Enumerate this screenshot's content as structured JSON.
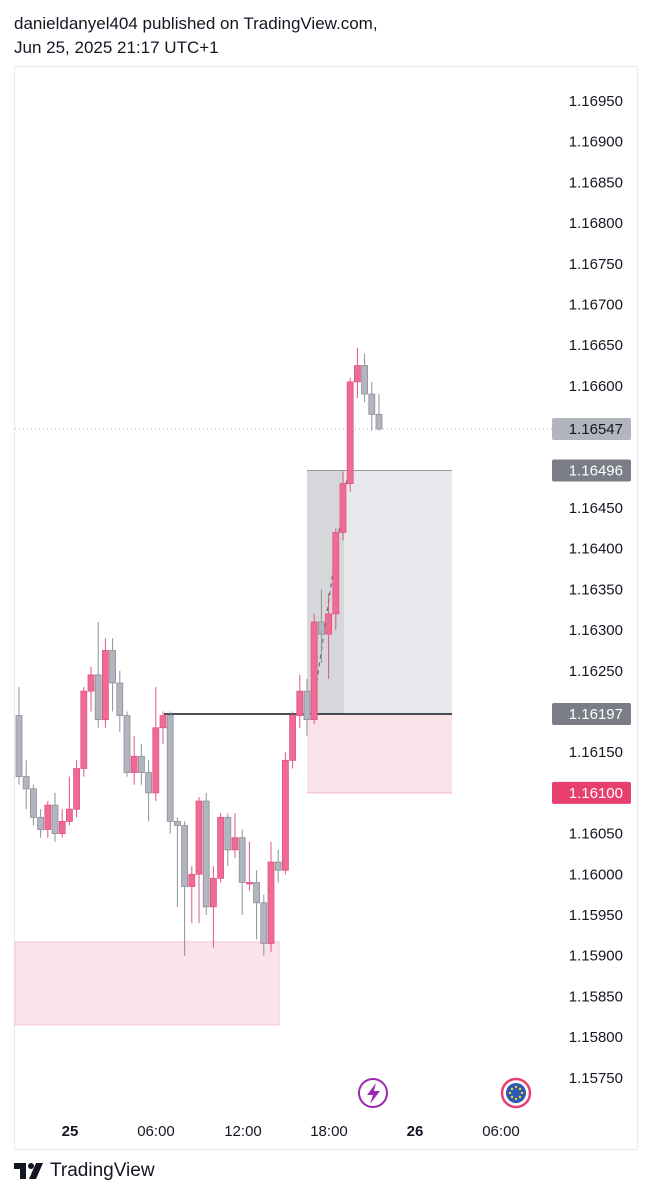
{
  "header": {
    "line1": "danieldanyel404 published on TradingView.com,",
    "line2": "Jun 25, 2025 21:17 UTC+1"
  },
  "footer": {
    "brand": "TradingView"
  },
  "colors": {
    "up_candle": "#f06b94",
    "down_candle": "#b2b5be",
    "zone_pink": "#fbe3ea",
    "zone_gray": "#e8e9ec",
    "zone_gray_dark": "#d6d7db",
    "tag_current": "#b2b5be",
    "tag_dark": "#7b7d86",
    "tag_red": "#e93f6f"
  },
  "chart_data": {
    "type": "candlestick",
    "y_ticks": [
      "1.16950",
      "1.16900",
      "1.16850",
      "1.16800",
      "1.16750",
      "1.16700",
      "1.16650",
      "1.16600",
      "1.16550",
      "1.16500",
      "1.16450",
      "1.16400",
      "1.16350",
      "1.16300",
      "1.16250",
      "1.16200",
      "1.16150",
      "1.16100",
      "1.16050",
      "1.16000",
      "1.15950",
      "1.15900",
      "1.15850",
      "1.15800",
      "1.15750"
    ],
    "visible_y_ticks": [
      "1.16950",
      "1.16900",
      "1.16850",
      "1.16800",
      "1.16750",
      "1.16700",
      "1.16650",
      "1.16600",
      "1.16450",
      "1.16400",
      "1.16350",
      "1.16300",
      "1.16250",
      "1.16150",
      "1.16050",
      "1.16000",
      "1.15950",
      "1.15900",
      "1.15850",
      "1.15800",
      "1.15750"
    ],
    "x_ticks": [
      {
        "label": "25",
        "bold": true
      },
      {
        "label": "06:00",
        "bold": false
      },
      {
        "label": "12:00",
        "bold": false
      },
      {
        "label": "18:00",
        "bold": false
      },
      {
        "label": "26",
        "bold": true
      },
      {
        "label": "06:00",
        "bold": false
      }
    ],
    "price_tags": [
      {
        "label": "1.16547",
        "style": "current"
      },
      {
        "label": "1.16496",
        "style": "dark"
      },
      {
        "label": "1.16197",
        "style": "dark"
      },
      {
        "label": "1.16100",
        "style": "red"
      }
    ],
    "candles": [
      {
        "o": 1.16195,
        "h": 1.1623,
        "l": 1.1611,
        "c": 1.1612
      },
      {
        "o": 1.1612,
        "h": 1.1614,
        "l": 1.1608,
        "c": 1.16105
      },
      {
        "o": 1.16105,
        "h": 1.1611,
        "l": 1.1606,
        "c": 1.1607
      },
      {
        "o": 1.1607,
        "h": 1.1608,
        "l": 1.16045,
        "c": 1.16055
      },
      {
        "o": 1.16055,
        "h": 1.1609,
        "l": 1.16045,
        "c": 1.16085
      },
      {
        "o": 1.16085,
        "h": 1.161,
        "l": 1.1604,
        "c": 1.1605
      },
      {
        "o": 1.1605,
        "h": 1.1608,
        "l": 1.16045,
        "c": 1.16065
      },
      {
        "o": 1.16065,
        "h": 1.1612,
        "l": 1.1606,
        "c": 1.1608
      },
      {
        "o": 1.1608,
        "h": 1.1614,
        "l": 1.1607,
        "c": 1.1613
      },
      {
        "o": 1.1613,
        "h": 1.1623,
        "l": 1.1612,
        "c": 1.16225
      },
      {
        "o": 1.16225,
        "h": 1.16255,
        "l": 1.162,
        "c": 1.16245
      },
      {
        "o": 1.16245,
        "h": 1.1631,
        "l": 1.1618,
        "c": 1.1619
      },
      {
        "o": 1.1619,
        "h": 1.1629,
        "l": 1.1618,
        "c": 1.16275
      },
      {
        "o": 1.16275,
        "h": 1.1629,
        "l": 1.162,
        "c": 1.16235
      },
      {
        "o": 1.16235,
        "h": 1.1625,
        "l": 1.16175,
        "c": 1.16195
      },
      {
        "o": 1.16195,
        "h": 1.162,
        "l": 1.1612,
        "c": 1.16125
      },
      {
        "o": 1.16125,
        "h": 1.1617,
        "l": 1.1611,
        "c": 1.16145
      },
      {
        "o": 1.16145,
        "h": 1.1616,
        "l": 1.1611,
        "c": 1.16125
      },
      {
        "o": 1.16125,
        "h": 1.1614,
        "l": 1.16065,
        "c": 1.161
      },
      {
        "o": 1.161,
        "h": 1.1623,
        "l": 1.1609,
        "c": 1.1618
      },
      {
        "o": 1.1618,
        "h": 1.162,
        "l": 1.1616,
        "c": 1.16195
      },
      {
        "o": 1.16195,
        "h": 1.162,
        "l": 1.1605,
        "c": 1.16065
      },
      {
        "o": 1.16065,
        "h": 1.1607,
        "l": 1.1596,
        "c": 1.1606
      },
      {
        "o": 1.1606,
        "h": 1.16065,
        "l": 1.159,
        "c": 1.15985
      },
      {
        "o": 1.15985,
        "h": 1.1601,
        "l": 1.1594,
        "c": 1.16
      },
      {
        "o": 1.16,
        "h": 1.16095,
        "l": 1.1594,
        "c": 1.1609
      },
      {
        "o": 1.1609,
        "h": 1.161,
        "l": 1.1595,
        "c": 1.1596
      },
      {
        "o": 1.1596,
        "h": 1.1601,
        "l": 1.1591,
        "c": 1.15995
      },
      {
        "o": 1.15995,
        "h": 1.16075,
        "l": 1.1599,
        "c": 1.1607
      },
      {
        "o": 1.1607,
        "h": 1.16075,
        "l": 1.1601,
        "c": 1.1603
      },
      {
        "o": 1.1603,
        "h": 1.16075,
        "l": 1.1602,
        "c": 1.16045
      },
      {
        "o": 1.16045,
        "h": 1.16055,
        "l": 1.1595,
        "c": 1.1599
      },
      {
        "o": 1.1599,
        "h": 1.1604,
        "l": 1.1598,
        "c": 1.1599
      },
      {
        "o": 1.1599,
        "h": 1.16005,
        "l": 1.1592,
        "c": 1.15965
      },
      {
        "o": 1.15965,
        "h": 1.15975,
        "l": 1.159,
        "c": 1.15915
      },
      {
        "o": 1.15915,
        "h": 1.1604,
        "l": 1.15905,
        "c": 1.16015
      },
      {
        "o": 1.16015,
        "h": 1.1603,
        "l": 1.1599,
        "c": 1.16005
      },
      {
        "o": 1.16005,
        "h": 1.1615,
        "l": 1.16,
        "c": 1.1614
      },
      {
        "o": 1.1614,
        "h": 1.162,
        "l": 1.1613,
        "c": 1.16195
      },
      {
        "o": 1.16195,
        "h": 1.16245,
        "l": 1.1618,
        "c": 1.16225
      },
      {
        "o": 1.16225,
        "h": 1.1624,
        "l": 1.1617,
        "c": 1.1619
      },
      {
        "o": 1.1619,
        "h": 1.1632,
        "l": 1.16185,
        "c": 1.1631
      },
      {
        "o": 1.1631,
        "h": 1.1635,
        "l": 1.1626,
        "c": 1.16295
      },
      {
        "o": 1.16295,
        "h": 1.16345,
        "l": 1.1624,
        "c": 1.1632
      },
      {
        "o": 1.1632,
        "h": 1.16425,
        "l": 1.163,
        "c": 1.1642
      },
      {
        "o": 1.1642,
        "h": 1.16495,
        "l": 1.1641,
        "c": 1.1648
      },
      {
        "o": 1.1648,
        "h": 1.1661,
        "l": 1.1647,
        "c": 1.16605
      },
      {
        "o": 1.16605,
        "h": 1.16647,
        "l": 1.16585,
        "c": 1.16625
      },
      {
        "o": 1.16625,
        "h": 1.1664,
        "l": 1.1658,
        "c": 1.1659
      },
      {
        "o": 1.1659,
        "h": 1.16605,
        "l": 1.16545,
        "c": 1.16565
      },
      {
        "o": 1.16565,
        "h": 1.1659,
        "l": 1.16545,
        "c": 1.16547
      }
    ]
  }
}
